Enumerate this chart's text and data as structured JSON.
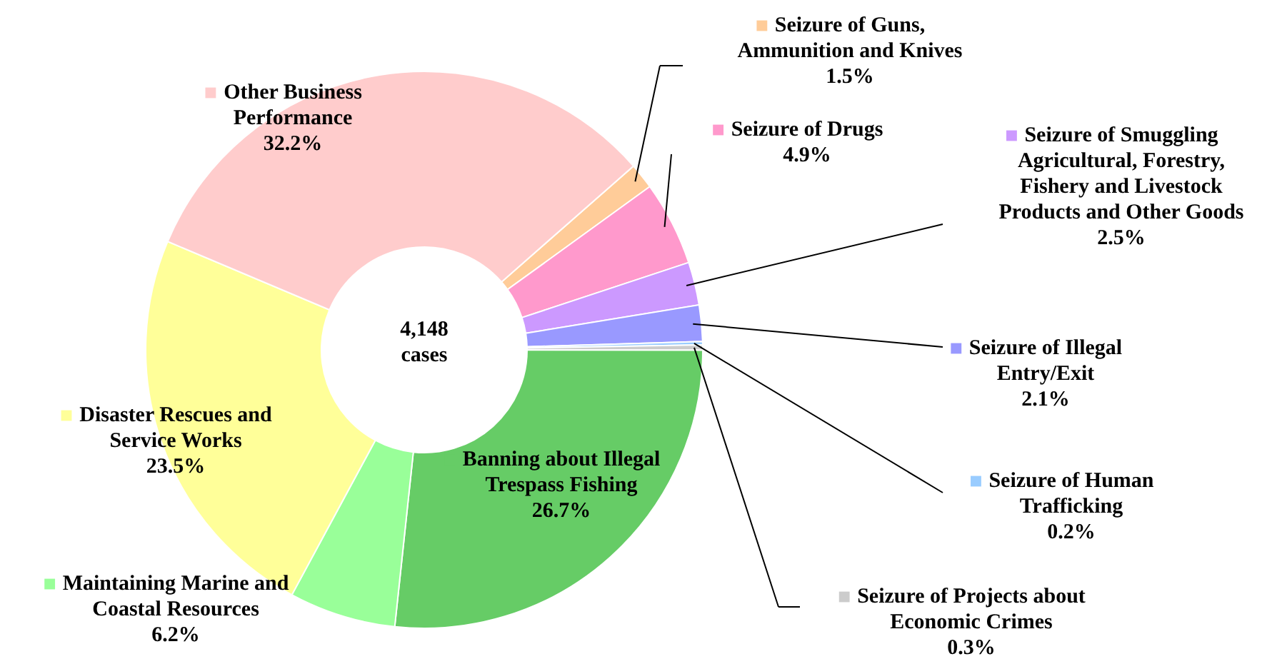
{
  "chart_data": {
    "type": "donut",
    "categories": [
      "Seizure of Guns, Ammunition and Knives",
      "Seizure of Drugs",
      "Seizure of Smuggling Agricultural, Forestry, Fishery and Livestock Products and Other Goods",
      "Seizure of Illegal Entry/Exit",
      "Seizure of Human Trafficking",
      "Seizure of Projects about Economic Crimes",
      "Banning about Illegal Trespass Fishing",
      "Maintaining Marine and Coastal Resources",
      "Disaster Rescues and Service Works",
      "Other Business Performance"
    ],
    "values": [
      1.5,
      4.9,
      2.5,
      2.1,
      0.2,
      0.3,
      26.7,
      6.2,
      23.5,
      32.2
    ],
    "colors": [
      "#ffcc99",
      "#ff99cc",
      "#cc99ff",
      "#9999ff",
      "#99ccff",
      "#cccccc",
      "#66cc66",
      "#99ff99",
      "#ffff99",
      "#ffcccc"
    ],
    "value_labels": [
      "1.5%",
      "4.9%",
      "2.5%",
      "2.1%",
      "0.2%",
      "0.3%",
      "26.7%",
      "6.2%",
      "23.5%",
      "32.2%"
    ],
    "annotations": [
      "4,148 cases"
    ],
    "legend": "right"
  }
}
